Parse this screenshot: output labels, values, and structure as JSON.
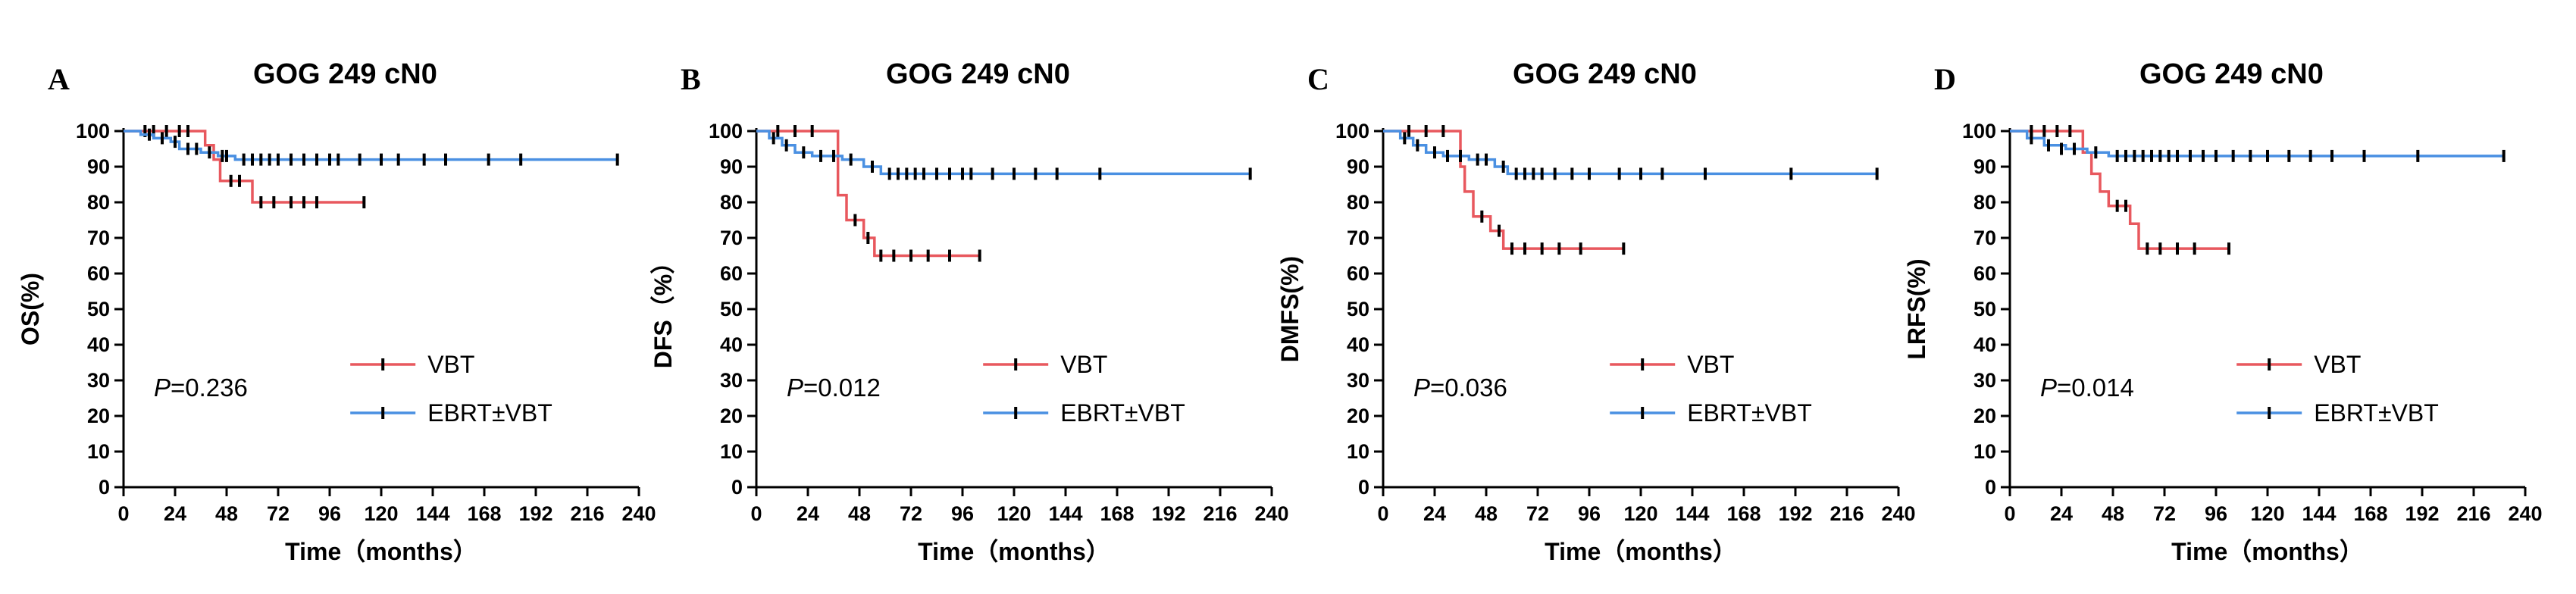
{
  "figure": {
    "series_colors": {
      "VBT": "#e8585e",
      "EBRT±VBT": "#4a90e2"
    },
    "censor_color": "#000000"
  },
  "chart_data": [
    {
      "type": "line",
      "subtype": "kaplan-meier",
      "panel": "A",
      "title": "GOG 249 cN0",
      "xlabel": "Time（months）",
      "ylabel": "OS(%)",
      "xlim": [
        0,
        240
      ],
      "ylim": [
        0,
        100
      ],
      "xticks": [
        0,
        24,
        48,
        72,
        96,
        120,
        144,
        168,
        192,
        216,
        240
      ],
      "yticks": [
        0,
        10,
        20,
        30,
        40,
        50,
        60,
        70,
        80,
        90,
        100
      ],
      "annotation": {
        "p_label": "P",
        "p_value": "=0.236"
      },
      "legend_position": "bottom-right",
      "series": [
        {
          "name": "VBT",
          "color": "#e8585e",
          "steps": [
            [
              0,
              100
            ],
            [
              36,
              100
            ],
            [
              38,
              96
            ],
            [
              42,
              92
            ],
            [
              45,
              86
            ],
            [
              60,
              80
            ],
            [
              112,
              80
            ]
          ],
          "censors": [
            [
              10,
              100
            ],
            [
              14,
              100
            ],
            [
              20,
              100
            ],
            [
              26,
              100
            ],
            [
              30,
              100
            ],
            [
              50,
              86
            ],
            [
              54,
              86
            ],
            [
              64,
              80
            ],
            [
              70,
              80
            ],
            [
              78,
              80
            ],
            [
              84,
              80
            ],
            [
              90,
              80
            ],
            [
              112,
              80
            ]
          ]
        },
        {
          "name": "EBRT±VBT",
          "color": "#4a90e2",
          "steps": [
            [
              0,
              100
            ],
            [
              8,
              99
            ],
            [
              14,
              98
            ],
            [
              22,
              97
            ],
            [
              26,
              95
            ],
            [
              36,
              94
            ],
            [
              44,
              93
            ],
            [
              52,
              92
            ],
            [
              230,
              92
            ]
          ],
          "censors": [
            [
              12,
              99
            ],
            [
              18,
              98
            ],
            [
              24,
              97
            ],
            [
              30,
              95
            ],
            [
              34,
              95
            ],
            [
              40,
              94
            ],
            [
              46,
              93
            ],
            [
              48,
              93
            ],
            [
              56,
              92
            ],
            [
              60,
              92
            ],
            [
              64,
              92
            ],
            [
              68,
              92
            ],
            [
              72,
              92
            ],
            [
              78,
              92
            ],
            [
              84,
              92
            ],
            [
              90,
              92
            ],
            [
              96,
              92
            ],
            [
              100,
              92
            ],
            [
              110,
              92
            ],
            [
              120,
              92
            ],
            [
              128,
              92
            ],
            [
              140,
              92
            ],
            [
              150,
              92
            ],
            [
              170,
              92
            ],
            [
              185,
              92
            ],
            [
              230,
              92
            ]
          ]
        }
      ]
    },
    {
      "type": "line",
      "subtype": "kaplan-meier",
      "panel": "B",
      "title": "GOG 249 cN0",
      "xlabel": "Time（months）",
      "ylabel": "DFS（%）",
      "xlim": [
        0,
        240
      ],
      "ylim": [
        0,
        100
      ],
      "xticks": [
        0,
        24,
        48,
        72,
        96,
        120,
        144,
        168,
        192,
        216,
        240
      ],
      "yticks": [
        0,
        10,
        20,
        30,
        40,
        50,
        60,
        70,
        80,
        90,
        100
      ],
      "annotation": {
        "p_label": "P",
        "p_value": "=0.012"
      },
      "legend_position": "bottom-right",
      "series": [
        {
          "name": "VBT",
          "color": "#e8585e",
          "steps": [
            [
              0,
              100
            ],
            [
              36,
              100
            ],
            [
              38,
              82
            ],
            [
              42,
              75
            ],
            [
              50,
              70
            ],
            [
              55,
              65
            ],
            [
              104,
              65
            ]
          ],
          "censors": [
            [
              10,
              100
            ],
            [
              18,
              100
            ],
            [
              26,
              100
            ],
            [
              46,
              75
            ],
            [
              52,
              70
            ],
            [
              58,
              65
            ],
            [
              64,
              65
            ],
            [
              72,
              65
            ],
            [
              80,
              65
            ],
            [
              90,
              65
            ],
            [
              104,
              65
            ]
          ]
        },
        {
          "name": "EBRT±VBT",
          "color": "#4a90e2",
          "steps": [
            [
              0,
              100
            ],
            [
              6,
              98
            ],
            [
              12,
              96
            ],
            [
              18,
              94
            ],
            [
              26,
              93
            ],
            [
              40,
              92
            ],
            [
              50,
              90
            ],
            [
              58,
              88
            ],
            [
              230,
              88
            ]
          ],
          "censors": [
            [
              8,
              98
            ],
            [
              14,
              96
            ],
            [
              22,
              94
            ],
            [
              30,
              93
            ],
            [
              36,
              93
            ],
            [
              44,
              92
            ],
            [
              54,
              90
            ],
            [
              62,
              88
            ],
            [
              66,
              88
            ],
            [
              70,
              88
            ],
            [
              74,
              88
            ],
            [
              78,
              88
            ],
            [
              84,
              88
            ],
            [
              90,
              88
            ],
            [
              96,
              88
            ],
            [
              100,
              88
            ],
            [
              110,
              88
            ],
            [
              120,
              88
            ],
            [
              130,
              88
            ],
            [
              140,
              88
            ],
            [
              160,
              88
            ],
            [
              230,
              88
            ]
          ]
        }
      ]
    },
    {
      "type": "line",
      "subtype": "kaplan-meier",
      "panel": "C",
      "title": "GOG 249 cN0",
      "xlabel": "Time（months）",
      "ylabel": "DMFS(%)",
      "xlim": [
        0,
        240
      ],
      "ylim": [
        0,
        100
      ],
      "xticks": [
        0,
        24,
        48,
        72,
        96,
        120,
        144,
        168,
        192,
        216,
        240
      ],
      "yticks": [
        0,
        10,
        20,
        30,
        40,
        50,
        60,
        70,
        80,
        90,
        100
      ],
      "annotation": {
        "p_label": "P",
        "p_value": "=0.036"
      },
      "legend_position": "bottom-right",
      "series": [
        {
          "name": "VBT",
          "color": "#e8585e",
          "steps": [
            [
              0,
              100
            ],
            [
              34,
              100
            ],
            [
              36,
              90
            ],
            [
              38,
              83
            ],
            [
              42,
              76
            ],
            [
              50,
              72
            ],
            [
              56,
              67
            ],
            [
              112,
              67
            ]
          ],
          "censors": [
            [
              12,
              100
            ],
            [
              20,
              100
            ],
            [
              28,
              100
            ],
            [
              46,
              76
            ],
            [
              54,
              72
            ],
            [
              60,
              67
            ],
            [
              66,
              67
            ],
            [
              74,
              67
            ],
            [
              82,
              67
            ],
            [
              92,
              67
            ],
            [
              112,
              67
            ]
          ]
        },
        {
          "name": "EBRT±VBT",
          "color": "#4a90e2",
          "steps": [
            [
              0,
              100
            ],
            [
              8,
              98
            ],
            [
              14,
              96
            ],
            [
              20,
              94
            ],
            [
              28,
              93
            ],
            [
              40,
              92
            ],
            [
              52,
              90
            ],
            [
              58,
              88
            ],
            [
              230,
              88
            ]
          ],
          "censors": [
            [
              10,
              98
            ],
            [
              16,
              96
            ],
            [
              24,
              94
            ],
            [
              30,
              93
            ],
            [
              36,
              93
            ],
            [
              44,
              92
            ],
            [
              48,
              92
            ],
            [
              56,
              90
            ],
            [
              62,
              88
            ],
            [
              66,
              88
            ],
            [
              70,
              88
            ],
            [
              74,
              88
            ],
            [
              80,
              88
            ],
            [
              88,
              88
            ],
            [
              96,
              88
            ],
            [
              110,
              88
            ],
            [
              120,
              88
            ],
            [
              130,
              88
            ],
            [
              150,
              88
            ],
            [
              190,
              88
            ],
            [
              230,
              88
            ]
          ]
        }
      ]
    },
    {
      "type": "line",
      "subtype": "kaplan-meier",
      "panel": "D",
      "title": "GOG 249 cN0",
      "xlabel": "Time（months）",
      "ylabel": "LRFS(%)",
      "xlim": [
        0,
        240
      ],
      "ylim": [
        0,
        100
      ],
      "xticks": [
        0,
        24,
        48,
        72,
        96,
        120,
        144,
        168,
        192,
        216,
        240
      ],
      "yticks": [
        0,
        10,
        20,
        30,
        40,
        50,
        60,
        70,
        80,
        90,
        100
      ],
      "annotation": {
        "p_label": "P",
        "p_value": "=0.014"
      },
      "legend_position": "bottom-right",
      "series": [
        {
          "name": "VBT",
          "color": "#e8585e",
          "steps": [
            [
              0,
              100
            ],
            [
              30,
              100
            ],
            [
              34,
              94
            ],
            [
              38,
              88
            ],
            [
              42,
              83
            ],
            [
              46,
              79
            ],
            [
              56,
              74
            ],
            [
              60,
              67
            ],
            [
              102,
              67
            ]
          ],
          "censors": [
            [
              10,
              100
            ],
            [
              16,
              100
            ],
            [
              22,
              100
            ],
            [
              28,
              100
            ],
            [
              50,
              79
            ],
            [
              54,
              79
            ],
            [
              64,
              67
            ],
            [
              70,
              67
            ],
            [
              78,
              67
            ],
            [
              86,
              67
            ],
            [
              102,
              67
            ]
          ]
        },
        {
          "name": "EBRT±VBT",
          "color": "#4a90e2",
          "steps": [
            [
              0,
              100
            ],
            [
              8,
              98
            ],
            [
              16,
              96
            ],
            [
              26,
              95
            ],
            [
              36,
              94
            ],
            [
              46,
              93
            ],
            [
              230,
              93
            ]
          ],
          "censors": [
            [
              10,
              98
            ],
            [
              18,
              96
            ],
            [
              24,
              95
            ],
            [
              30,
              95
            ],
            [
              40,
              94
            ],
            [
              50,
              93
            ],
            [
              54,
              93
            ],
            [
              58,
              93
            ],
            [
              62,
              93
            ],
            [
              66,
              93
            ],
            [
              70,
              93
            ],
            [
              74,
              93
            ],
            [
              78,
              93
            ],
            [
              84,
              93
            ],
            [
              90,
              93
            ],
            [
              96,
              93
            ],
            [
              104,
              93
            ],
            [
              112,
              93
            ],
            [
              120,
              93
            ],
            [
              130,
              93
            ],
            [
              140,
              93
            ],
            [
              150,
              93
            ],
            [
              165,
              93
            ],
            [
              190,
              93
            ],
            [
              230,
              93
            ]
          ]
        }
      ]
    }
  ]
}
